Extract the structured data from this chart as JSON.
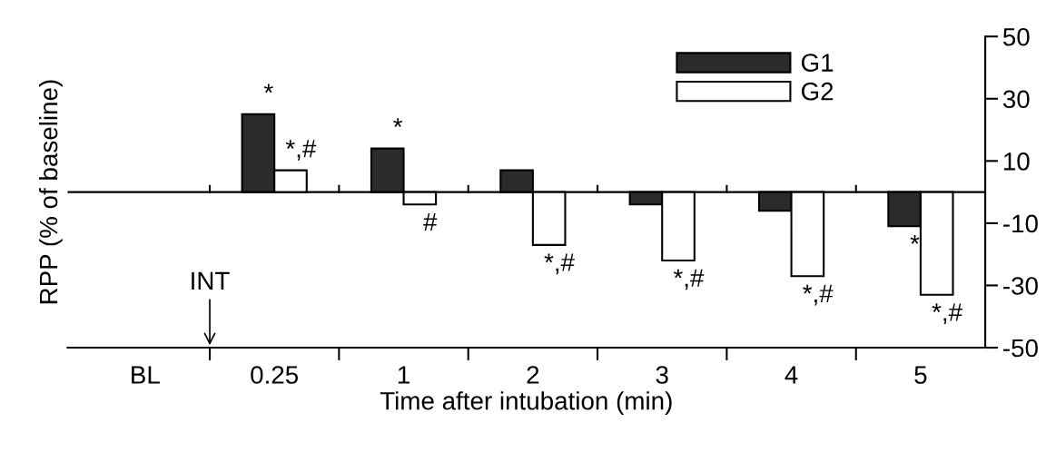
{
  "chart_data": {
    "type": "bar",
    "xlabel": "Time after intubation (min)",
    "ylabel": "RPP (% of baseline)",
    "categories": [
      "BL",
      "0.25",
      "1",
      "2",
      "3",
      "4",
      "5"
    ],
    "series": [
      {
        "name": "G1",
        "color": "#2b2b2b",
        "values": [
          null,
          25,
          14,
          7,
          -4,
          -6,
          -11
        ]
      },
      {
        "name": "G2",
        "color": "#ffffff",
        "values": [
          null,
          7,
          -4,
          -17,
          -22,
          -27,
          -33
        ]
      }
    ],
    "ylim": [
      -50,
      50
    ],
    "yticks": [
      -50,
      -30,
      -10,
      10,
      30,
      50
    ],
    "ref_lines": [
      {
        "axis": "y",
        "value": 0
      }
    ],
    "annotations": [
      {
        "text": "*",
        "x": "0.25",
        "y": 25
      },
      {
        "text": "*,#",
        "x": "0.25",
        "y": 7
      },
      {
        "text": "*",
        "x": "1",
        "y": 14
      },
      {
        "text": "#",
        "x": "1",
        "y": -4
      },
      {
        "text": "*,#",
        "x": "2",
        "y": -17
      },
      {
        "text": "*,#",
        "x": "3",
        "y": -22
      },
      {
        "text": "*,#",
        "x": "4",
        "y": -27
      },
      {
        "text": "*",
        "x": "5",
        "y": -11
      },
      {
        "text": "*,#",
        "x": "5",
        "y": -33
      },
      "INT"
    ],
    "legend": "top right",
    "grid": false
  }
}
